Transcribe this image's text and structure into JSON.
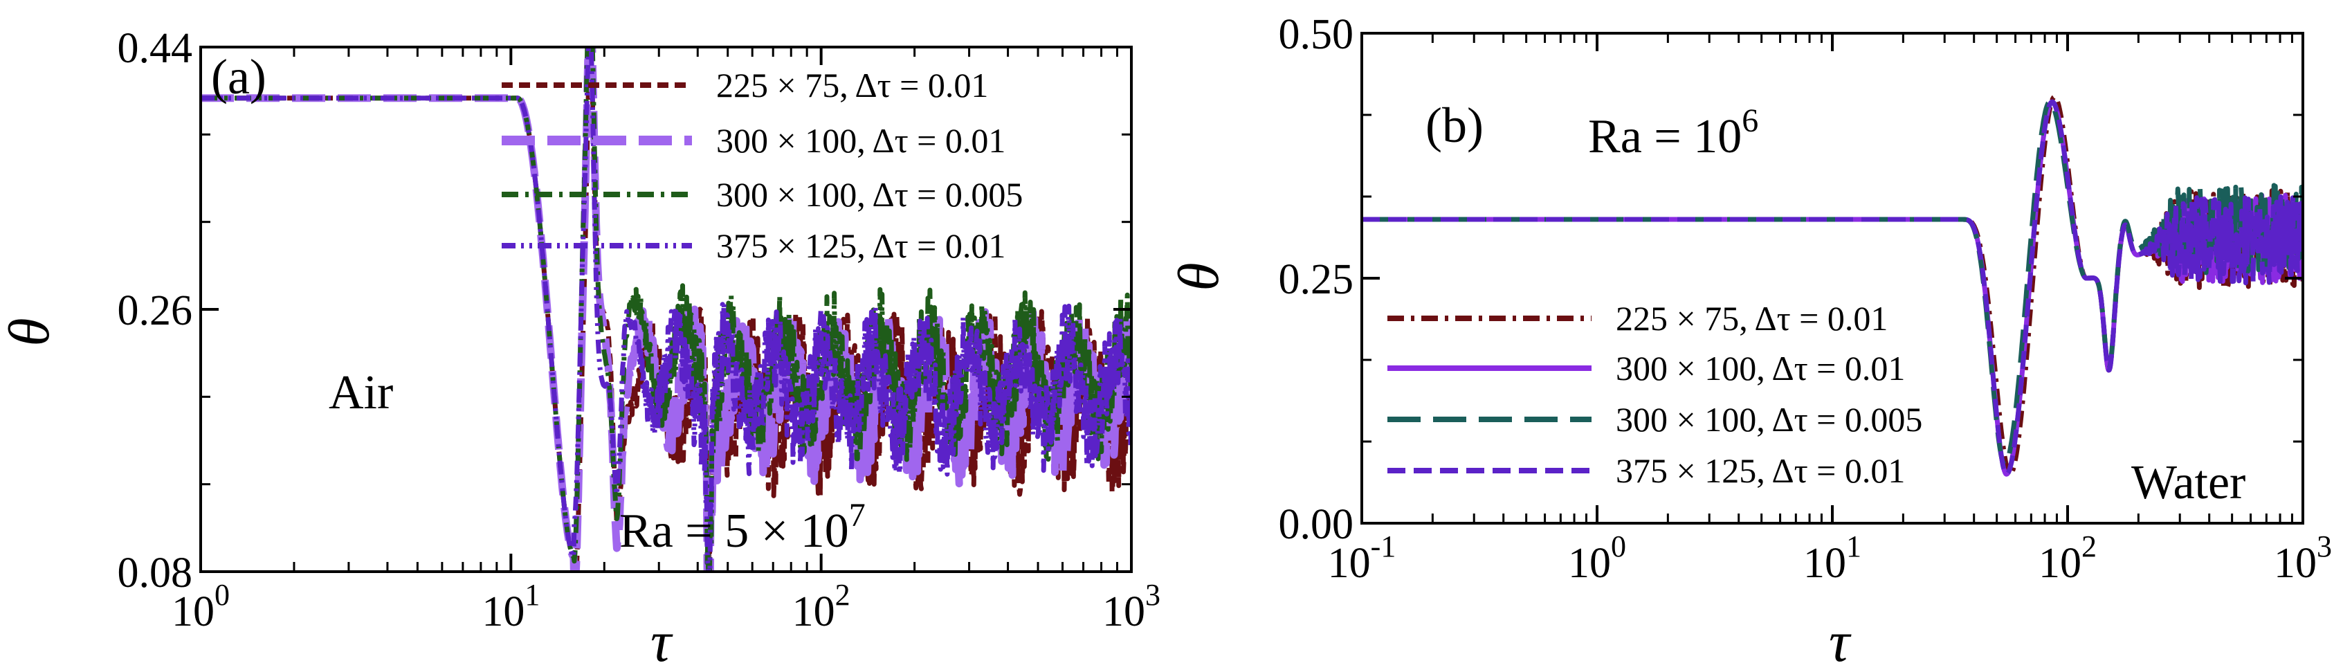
{
  "chart_data": [
    {
      "type": "line",
      "panel_label": "(a)",
      "xlabel": "τ",
      "ylabel": "θ",
      "xscale": "log",
      "xlim": [
        1,
        1000
      ],
      "ylim": [
        0.08,
        0.44
      ],
      "x_ticks": [
        {
          "value": 1,
          "base": "10",
          "exp": "0"
        },
        {
          "value": 10,
          "base": "10",
          "exp": "1"
        },
        {
          "value": 100,
          "base": "10",
          "exp": "2"
        },
        {
          "value": 1000,
          "base": "10",
          "exp": "3"
        }
      ],
      "y_ticks": [
        {
          "value": 0.08,
          "label": "0.08"
        },
        {
          "value": 0.26,
          "label": "0.26"
        },
        {
          "value": 0.44,
          "label": "0.44"
        }
      ],
      "annotations": {
        "fluid": "Air",
        "ra_prefix": "Ra = 5 × 10",
        "ra_exp": "7"
      },
      "legend_position": "top-right",
      "series": [
        {
          "name": "225 × 75,   Δτ = 0.01",
          "color": "#6b0f12",
          "dash": "short-dash",
          "plateau": 0.405,
          "drop_start": 10.5,
          "min_x": 16,
          "min_y": 0.09,
          "late_mean": 0.195,
          "late_amp": 0.035
        },
        {
          "name": "300 × 100, Δτ = 0.01",
          "color": "#a066ee",
          "dash": "long-dash",
          "plateau": 0.405,
          "drop_start": 10.5,
          "min_x": 16,
          "min_y": 0.09,
          "late_mean": 0.2,
          "late_amp": 0.03
        },
        {
          "name": "300 × 100, Δτ = 0.005",
          "color": "#1f5c1a",
          "dash": "dash-dot",
          "plateau": 0.405,
          "drop_start": 10.5,
          "min_x": 16,
          "min_y": 0.09,
          "late_mean": 0.215,
          "late_amp": 0.03
        },
        {
          "name": "375 × 125, Δτ = 0.01",
          "color": "#5b22c8",
          "dash": "dash-dot-dot",
          "plateau": 0.405,
          "drop_start": 10.5,
          "min_x": 16,
          "min_y": 0.09,
          "late_mean": 0.205,
          "late_amp": 0.03
        }
      ]
    },
    {
      "type": "line",
      "panel_label": "(b)",
      "xlabel": "τ",
      "ylabel": "θ",
      "xscale": "log",
      "xlim": [
        0.1,
        1000
      ],
      "ylim": [
        0.0,
        0.5
      ],
      "x_ticks": [
        {
          "value": 0.1,
          "base": "10",
          "exp": "-1"
        },
        {
          "value": 1,
          "base": "10",
          "exp": "0"
        },
        {
          "value": 10,
          "base": "10",
          "exp": "1"
        },
        {
          "value": 100,
          "base": "10",
          "exp": "2"
        },
        {
          "value": 1000,
          "base": "10",
          "exp": "3"
        }
      ],
      "y_ticks": [
        {
          "value": 0.0,
          "label": "0.00"
        },
        {
          "value": 0.25,
          "label": "0.25"
        },
        {
          "value": 0.5,
          "label": "0.50"
        }
      ],
      "annotations": {
        "fluid": "Water",
        "ra_prefix": "Ra = 10",
        "ra_exp": "6"
      },
      "legend_position": "bottom-right",
      "series": [
        {
          "name": "225 × 75,   Δτ = 0.01",
          "color": "#6b0f12",
          "dash": "dash-dot",
          "plateau": 0.31,
          "min_x": 57,
          "min_y": 0.05,
          "peak_x": 88,
          "peak_y": 0.435,
          "late_mean": 0.29,
          "late_amp": 0.05
        },
        {
          "name": "300 × 100, Δτ = 0.01",
          "color": "#8a2be2",
          "dash": "solid",
          "plateau": 0.31,
          "min_x": 55,
          "min_y": 0.05,
          "peak_x": 86,
          "peak_y": 0.43,
          "late_mean": 0.29,
          "late_amp": 0.045
        },
        {
          "name": "300 × 100, Δτ = 0.005",
          "color": "#1a5e5a",
          "dash": "long-dash",
          "plateau": 0.31,
          "min_x": 54,
          "min_y": 0.06,
          "peak_x": 84,
          "peak_y": 0.43,
          "late_mean": 0.3,
          "late_amp": 0.045
        },
        {
          "name": "375 × 125, Δτ = 0.01",
          "color": "#5b22c8",
          "dash": "medium-dash",
          "plateau": 0.31,
          "min_x": 55,
          "min_y": 0.05,
          "peak_x": 86,
          "peak_y": 0.43,
          "late_mean": 0.29,
          "late_amp": 0.045
        }
      ]
    }
  ]
}
